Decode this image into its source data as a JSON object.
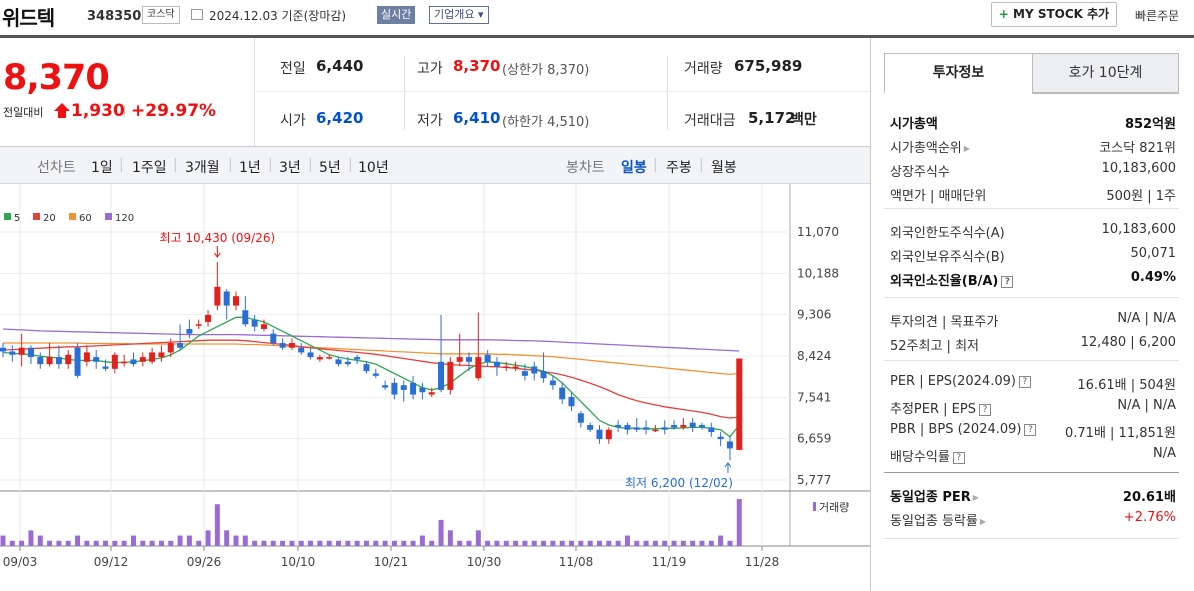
{
  "header": {
    "stock_name": "위드텍",
    "stock_code": "348350",
    "market": "코스닥",
    "date_text": "2024.12.03  기준(장마감)",
    "realtime_label": "실시간",
    "company_overview_label": "기업개요 ▾",
    "my_stock_label": "MY STOCK 추가",
    "quick_order_label": "빠른주문"
  },
  "quote": {
    "price": "8,370",
    "prev_label": "전일대비",
    "change": "1,930",
    "change_pct": "+29.97%",
    "prev_close_label": "전일",
    "prev_close": "6,440",
    "high_label": "고가",
    "high": "8,370",
    "upper_limit": "(상한가 8,370)",
    "volume_label": "거래량",
    "volume": "675,989",
    "open_label": "시가",
    "open": "6,420",
    "low_label": "저가",
    "low": "6,410",
    "lower_limit": "(하한가 4,510)",
    "value_label": "거래대금",
    "value": "5,172",
    "value_unit": "백만"
  },
  "chart_nav": {
    "line_chart": "선차트",
    "periods": [
      "1일",
      "1주일",
      "3개월",
      "1년",
      "3년",
      "5년",
      "10년"
    ],
    "candle_chart": "봉차트",
    "candle_periods": [
      "일봉",
      "주봉",
      "월봉"
    ],
    "selected_candle": "일봉"
  },
  "chart_data": {
    "type": "candlestick",
    "legend": [
      {
        "name": "5",
        "color": "#2fa84f"
      },
      {
        "name": "20",
        "color": "#e3413b"
      },
      {
        "name": "60",
        "color": "#f29435"
      },
      {
        "name": "120",
        "color": "#9b6bd4"
      }
    ],
    "y_ticks": [
      "11,070",
      "10,188",
      "9,306",
      "8,424",
      "7,541",
      "6,659",
      "5,777"
    ],
    "y_range": [
      5777,
      11070
    ],
    "x_ticks": [
      "09/03",
      "09/12",
      "09/26",
      "10/10",
      "10/21",
      "10/30",
      "11/08",
      "11/19",
      "11/28"
    ],
    "high_annotation": "최고 10,430 (09/26)",
    "low_annotation": "최저 6,200 (12/02)",
    "volume_label": "거래량",
    "candles": [
      {
        "o": 8600,
        "c": 8520,
        "h": 8700,
        "l": 8400
      },
      {
        "o": 8520,
        "c": 8450,
        "h": 8650,
        "l": 8300
      },
      {
        "o": 8450,
        "c": 8600,
        "h": 8900,
        "l": 8200
      },
      {
        "o": 8600,
        "c": 8400,
        "h": 8650,
        "l": 8250
      },
      {
        "o": 8400,
        "c": 8250,
        "h": 8500,
        "l": 8150
      },
      {
        "o": 8250,
        "c": 8400,
        "h": 8700,
        "l": 8200
      },
      {
        "o": 8400,
        "c": 8250,
        "h": 8650,
        "l": 8150
      },
      {
        "o": 8250,
        "c": 8450,
        "h": 8550,
        "l": 8150
      },
      {
        "o": 8600,
        "c": 8000,
        "h": 8700,
        "l": 7950
      },
      {
        "o": 8300,
        "c": 8500,
        "h": 8650,
        "l": 8200
      },
      {
        "o": 8400,
        "c": 8300,
        "h": 8550,
        "l": 8150
      },
      {
        "o": 8200,
        "c": 8150,
        "h": 8350,
        "l": 8100
      },
      {
        "o": 8150,
        "c": 8450,
        "h": 8500,
        "l": 8050
      },
      {
        "o": 8300,
        "c": 8300,
        "h": 8450,
        "l": 8200
      },
      {
        "o": 8350,
        "c": 8250,
        "h": 8500,
        "l": 8200
      },
      {
        "o": 8300,
        "c": 8400,
        "h": 8500,
        "l": 8200
      },
      {
        "o": 8300,
        "c": 8500,
        "h": 8600,
        "l": 8250
      },
      {
        "o": 8400,
        "c": 8500,
        "h": 8650,
        "l": 8300
      },
      {
        "o": 8500,
        "c": 8700,
        "h": 8800,
        "l": 8400
      },
      {
        "o": 8700,
        "c": 8600,
        "h": 9100,
        "l": 8550
      },
      {
        "o": 9000,
        "c": 8900,
        "h": 9200,
        "l": 8800
      },
      {
        "o": 9100,
        "c": 9100,
        "h": 9200,
        "l": 9000
      },
      {
        "o": 9150,
        "c": 9300,
        "h": 9400,
        "l": 9050
      },
      {
        "o": 9500,
        "c": 9900,
        "h": 10430,
        "l": 9400
      },
      {
        "o": 9800,
        "c": 9500,
        "h": 9850,
        "l": 9200
      },
      {
        "o": 9500,
        "c": 9700,
        "h": 9800,
        "l": 9400
      },
      {
        "o": 9400,
        "c": 9100,
        "h": 9700,
        "l": 9050
      },
      {
        "o": 9200,
        "c": 9050,
        "h": 9300,
        "l": 8950
      },
      {
        "o": 9000,
        "c": 9100,
        "h": 9200,
        "l": 8950
      },
      {
        "o": 8900,
        "c": 8700,
        "h": 9000,
        "l": 8650
      },
      {
        "o": 8700,
        "c": 8600,
        "h": 8800,
        "l": 8550
      },
      {
        "o": 8600,
        "c": 8700,
        "h": 8800,
        "l": 8550
      },
      {
        "o": 8600,
        "c": 8500,
        "h": 8700,
        "l": 8450
      },
      {
        "o": 8500,
        "c": 8400,
        "h": 8600,
        "l": 8350
      },
      {
        "o": 8350,
        "c": 8400,
        "h": 8450,
        "l": 8300
      },
      {
        "o": 8400,
        "c": 8400,
        "h": 8450,
        "l": 8350
      },
      {
        "o": 8350,
        "c": 8250,
        "h": 8400,
        "l": 8200
      },
      {
        "o": 8300,
        "c": 8250,
        "h": 8400,
        "l": 8200
      },
      {
        "o": 8400,
        "c": 8350,
        "h": 8450,
        "l": 8250
      },
      {
        "o": 8250,
        "c": 8100,
        "h": 8300,
        "l": 8050
      },
      {
        "o": 8050,
        "c": 8000,
        "h": 8150,
        "l": 7950
      },
      {
        "o": 7800,
        "c": 7750,
        "h": 7900,
        "l": 7700
      },
      {
        "o": 7850,
        "c": 7600,
        "h": 7950,
        "l": 7500
      },
      {
        "o": 7800,
        "c": 7700,
        "h": 7900,
        "l": 7450
      },
      {
        "o": 7850,
        "c": 7600,
        "h": 8000,
        "l": 7500
      },
      {
        "o": 7750,
        "c": 7650,
        "h": 7850,
        "l": 7500
      },
      {
        "o": 7600,
        "c": 7650,
        "h": 7750,
        "l": 7550
      },
      {
        "o": 8300,
        "c": 7700,
        "h": 9300,
        "l": 7650
      },
      {
        "o": 7700,
        "c": 8300,
        "h": 8400,
        "l": 7600
      },
      {
        "o": 8300,
        "c": 8400,
        "h": 8900,
        "l": 8200
      },
      {
        "o": 8400,
        "c": 8300,
        "h": 8500,
        "l": 8100
      },
      {
        "o": 7950,
        "c": 8400,
        "h": 9350,
        "l": 7900
      },
      {
        "o": 8450,
        "c": 8300,
        "h": 8550,
        "l": 8200
      },
      {
        "o": 8300,
        "c": 8200,
        "h": 8400,
        "l": 8000
      },
      {
        "o": 8200,
        "c": 8200,
        "h": 8300,
        "l": 8100
      },
      {
        "o": 8200,
        "c": 8200,
        "h": 8300,
        "l": 8100
      },
      {
        "o": 8100,
        "c": 8000,
        "h": 8250,
        "l": 7900
      },
      {
        "o": 8200,
        "c": 8050,
        "h": 8300,
        "l": 7900
      },
      {
        "o": 8100,
        "c": 7950,
        "h": 8500,
        "l": 7850
      },
      {
        "o": 7900,
        "c": 7800,
        "h": 8000,
        "l": 7700
      },
      {
        "o": 7750,
        "c": 7500,
        "h": 7850,
        "l": 7400
      },
      {
        "o": 7550,
        "c": 7350,
        "h": 7650,
        "l": 7250
      },
      {
        "o": 7200,
        "c": 7000,
        "h": 7250,
        "l": 6900
      },
      {
        "o": 6950,
        "c": 6850,
        "h": 7000,
        "l": 6800
      },
      {
        "o": 6850,
        "c": 6650,
        "h": 6950,
        "l": 6550
      },
      {
        "o": 6650,
        "c": 6850,
        "h": 6900,
        "l": 6550
      },
      {
        "o": 6950,
        "c": 6900,
        "h": 7050,
        "l": 6800
      },
      {
        "o": 6950,
        "c": 6850,
        "h": 7000,
        "l": 6750
      },
      {
        "o": 6900,
        "c": 6850,
        "h": 7100,
        "l": 6800
      },
      {
        "o": 6900,
        "c": 6850,
        "h": 7050,
        "l": 6750
      },
      {
        "o": 6850,
        "c": 6850,
        "h": 6950,
        "l": 6800
      },
      {
        "o": 6900,
        "c": 6850,
        "h": 7050,
        "l": 6750
      },
      {
        "o": 6950,
        "c": 6900,
        "h": 7050,
        "l": 6850
      },
      {
        "o": 6900,
        "c": 6950,
        "h": 7100,
        "l": 6850
      },
      {
        "o": 7000,
        "c": 6900,
        "h": 7100,
        "l": 6800
      },
      {
        "o": 6950,
        "c": 6900,
        "h": 7000,
        "l": 6850
      },
      {
        "o": 6900,
        "c": 6800,
        "h": 7000,
        "l": 6700
      },
      {
        "o": 6700,
        "c": 6650,
        "h": 6800,
        "l": 6500
      },
      {
        "o": 6600,
        "c": 6450,
        "h": 6700,
        "l": 6200
      },
      {
        "o": 6420,
        "c": 8370,
        "h": 8370,
        "l": 6410
      }
    ],
    "volumes": [
      2,
      1,
      1,
      3,
      2,
      1,
      1,
      1,
      2,
      1,
      1,
      1,
      1,
      1,
      2,
      1,
      1,
      1,
      1,
      2,
      2,
      1,
      3,
      8,
      3,
      2,
      2,
      1,
      1,
      1,
      1,
      1,
      1,
      1,
      1,
      1,
      1,
      1,
      1,
      1,
      1,
      1,
      1,
      1,
      1,
      2,
      1,
      5,
      3,
      1,
      1,
      3,
      1,
      1,
      1,
      1,
      1,
      1,
      1,
      1,
      1,
      1,
      1,
      1,
      1,
      1,
      1,
      2,
      1,
      1,
      1,
      1,
      1,
      1,
      1,
      1,
      1,
      2,
      1,
      9
    ],
    "ma5": [
      8500,
      8480,
      8470,
      8450,
      8420,
      8400,
      8380,
      8350,
      8330,
      8330,
      8330,
      8300,
      8280,
      8290,
      8300,
      8320,
      8350,
      8380,
      8450,
      8550,
      8700,
      8850,
      8950,
      9050,
      9150,
      9250,
      9250,
      9200,
      9150,
      9050,
      8950,
      8850,
      8750,
      8650,
      8550,
      8450,
      8400,
      8360,
      8330,
      8300,
      8250,
      8150,
      8050,
      7950,
      7850,
      7750,
      7700,
      7750,
      7850,
      8000,
      8150,
      8250,
      8300,
      8280,
      8260,
      8230,
      8200,
      8150,
      8100,
      8000,
      7850,
      7650,
      7450,
      7250,
      7050,
      6950,
      6900,
      6880,
      6880,
      6870,
      6870,
      6880,
      6880,
      6890,
      6900,
      6900,
      6880,
      6850,
      6700,
      6950
    ],
    "ma20": [
      8550,
      8560,
      8570,
      8580,
      8590,
      8600,
      8610,
      8620,
      8620,
      8630,
      8640,
      8650,
      8660,
      8670,
      8680,
      8690,
      8700,
      8710,
      8720,
      8730,
      8740,
      8750,
      8760,
      8760,
      8760,
      8760,
      8750,
      8730,
      8710,
      8690,
      8670,
      8650,
      8620,
      8600,
      8580,
      8560,
      8540,
      8520,
      8500,
      8480,
      8460,
      8430,
      8400,
      8370,
      8340,
      8310,
      8280,
      8260,
      8240,
      8230,
      8220,
      8210,
      8200,
      8190,
      8180,
      8160,
      8140,
      8120,
      8090,
      8060,
      8020,
      7970,
      7910,
      7840,
      7770,
      7690,
      7600,
      7530,
      7470,
      7420,
      7380,
      7340,
      7310,
      7280,
      7250,
      7220,
      7180,
      7130,
      7100,
      7120
    ],
    "ma60": [
      8700,
      8700,
      8700,
      8700,
      8700,
      8700,
      8700,
      8700,
      8700,
      8690,
      8690,
      8690,
      8690,
      8690,
      8680,
      8680,
      8680,
      8680,
      8680,
      8680,
      8680,
      8680,
      8680,
      8680,
      8680,
      8680,
      8670,
      8670,
      8660,
      8650,
      8640,
      8630,
      8620,
      8610,
      8600,
      8590,
      8580,
      8570,
      8560,
      8550,
      8540,
      8530,
      8520,
      8510,
      8500,
      8490,
      8480,
      8470,
      8470,
      8470,
      8470,
      8470,
      8470,
      8460,
      8460,
      8450,
      8440,
      8430,
      8420,
      8410,
      8390,
      8370,
      8350,
      8330,
      8310,
      8290,
      8270,
      8250,
      8230,
      8210,
      8190,
      8170,
      8150,
      8130,
      8110,
      8090,
      8070,
      8050,
      8030,
      8050
    ],
    "ma120": [
      9000,
      8990,
      8980,
      8970,
      8960,
      8955,
      8950,
      8945,
      8940,
      8935,
      8930,
      8925,
      8920,
      8915,
      8910,
      8905,
      8900,
      8895,
      8890,
      8885,
      8880,
      8880,
      8880,
      8880,
      8880,
      8880,
      8875,
      8870,
      8865,
      8860,
      8855,
      8850,
      8845,
      8840,
      8835,
      8830,
      8825,
      8820,
      8815,
      8810,
      8805,
      8800,
      8795,
      8790,
      8785,
      8780,
      8775,
      8770,
      8770,
      8770,
      8770,
      8770,
      8770,
      8765,
      8760,
      8755,
      8750,
      8745,
      8740,
      8730,
      8720,
      8710,
      8700,
      8690,
      8680,
      8670,
      8660,
      8650,
      8640,
      8630,
      8620,
      8610,
      8600,
      8590,
      8580,
      8570,
      8560,
      8550,
      8540,
      8530
    ]
  },
  "side": {
    "tab_invest": "투자정보",
    "tab_hoga": "호가 10단계",
    "rows1": [
      {
        "l": "시가총액",
        "r": "852억원",
        "bold": true
      },
      {
        "l": "시가총액순위",
        "r": "코스닥 821위",
        "tri": true
      },
      {
        "l": "상장주식수",
        "r": "10,183,600"
      },
      {
        "l": "액면가 | 매매단위",
        "r": "500원 | 1주"
      }
    ],
    "rows2": [
      {
        "l": "외국인한도주식수(A)",
        "r": "10,183,600"
      },
      {
        "l": "외국인보유주식수(B)",
        "r": "50,071"
      },
      {
        "l": "외국인소진율(B/A)",
        "r": "0.49%",
        "bold": true,
        "q": true
      }
    ],
    "rows3": [
      {
        "l": "투자의견 | 목표주가",
        "r": "N/A | N/A"
      },
      {
        "l": "52주최고 | 최저",
        "r": "12,480 | 6,200"
      }
    ],
    "rows4": [
      {
        "l": "PER | EPS(2024.09)",
        "r": "16.61배 | 504원",
        "q": true
      },
      {
        "l": "추정PER | EPS",
        "r": "N/A | N/A",
        "q": true
      },
      {
        "l": "PBR | BPS (2024.09)",
        "r": "0.71배 | 11,851원",
        "q": true
      },
      {
        "l": "배당수익률",
        "r": "N/A",
        "q": true
      }
    ],
    "rows5": [
      {
        "l": "동일업종 PER",
        "r": "20.61배",
        "bold": true,
        "tri": true
      },
      {
        "l": "동일업종 등락률",
        "r": "+2.76%",
        "tri": true,
        "red": true
      }
    ]
  }
}
